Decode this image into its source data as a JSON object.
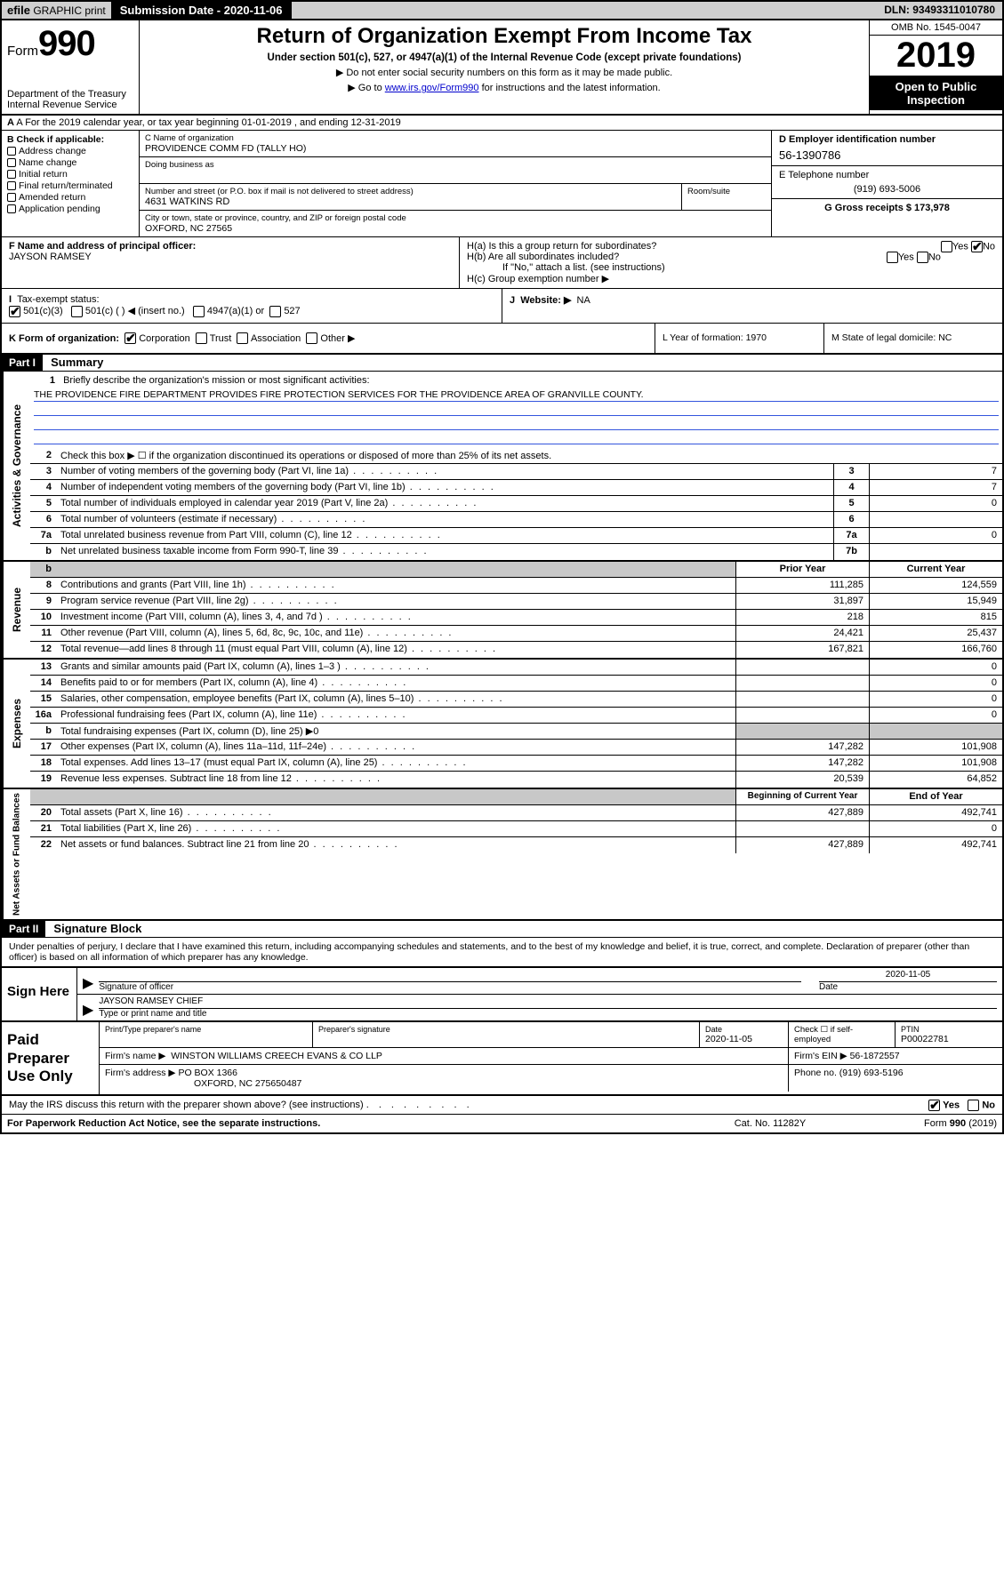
{
  "topbar": {
    "efile_prefix": "efile",
    "efile_rest": " GRAPHIC print",
    "submission_label": "Submission Date - 2020-11-06",
    "dln": "DLN: 93493311010780"
  },
  "header": {
    "form_word": "Form",
    "form_number": "990",
    "dept": "Department of the Treasury",
    "irs": "Internal Revenue Service",
    "title": "Return of Organization Exempt From Income Tax",
    "subtitle": "Under section 501(c), 527, or 4947(a)(1) of the Internal Revenue Code (except private foundations)",
    "note1": "▶ Do not enter social security numbers on this form as it may be made public.",
    "note2_pre": "▶ Go to ",
    "note2_link": "www.irs.gov/Form990",
    "note2_post": " for instructions and the latest information.",
    "omb": "OMB No. 1545-0047",
    "year": "2019",
    "open": "Open to Public Inspection"
  },
  "rowA": "A For the 2019 calendar year, or tax year beginning 01-01-2019     , and ending 12-31-2019",
  "colB": {
    "label": "B Check if applicable:",
    "items": [
      "Address change",
      "Name change",
      "Initial return",
      "Final return/terminated",
      "Amended return",
      "Application pending"
    ]
  },
  "colC": {
    "name_label": "C Name of organization",
    "name": "PROVIDENCE COMM FD (TALLY HO)",
    "dba_label": "Doing business as",
    "addr_label": "Number and street (or P.O. box if mail is not delivered to street address)",
    "room_label": "Room/suite",
    "addr": "4631 WATKINS RD",
    "city_label": "City or town, state or province, country, and ZIP or foreign postal code",
    "city": "OXFORD, NC  27565"
  },
  "colDE": {
    "d_label": "D Employer identification number",
    "ein": "56-1390786",
    "e_label": "E Telephone number",
    "phone": "(919) 693-5006",
    "g_label": "G Gross receipts $ 173,978"
  },
  "fh": {
    "f_label": "F  Name and address of principal officer:",
    "f_name": "JAYSON RAMSEY",
    "ha": "H(a)  Is this a group return for subordinates?",
    "hb": "H(b)  Are all subordinates included?",
    "hb_note": "If \"No,\" attach a list. (see instructions)",
    "hc": "H(c)  Group exemption number ▶",
    "yes": "Yes",
    "no": "No"
  },
  "ij": {
    "i_label": "Tax-exempt status:",
    "i_501c3": "501(c)(3)",
    "i_501c": "501(c) (  ) ◀ (insert no.)",
    "i_4947": "4947(a)(1) or",
    "i_527": "527",
    "j_label": "Website: ▶",
    "j_val": "NA"
  },
  "klm": {
    "k_label": "K Form of organization:",
    "k_corp": "Corporation",
    "k_trust": "Trust",
    "k_assoc": "Association",
    "k_other": "Other ▶",
    "l": "L Year of formation: 1970",
    "m": "M State of legal domicile: NC"
  },
  "partI": {
    "hdr": "Part I",
    "title": "Summary",
    "side_gov": "Activities & Governance",
    "side_rev": "Revenue",
    "side_exp": "Expenses",
    "side_net": "Net Assets or Fund Balances",
    "l1_label": "Briefly describe the organization's mission or most significant activities:",
    "l1_text": "THE PROVIDENCE FIRE DEPARTMENT PROVIDES FIRE PROTECTION SERVICES FOR THE PROVIDENCE AREA OF GRANVILLE COUNTY.",
    "l2": "Check this box ▶ ☐  if the organization discontinued its operations or disposed of more than 25% of its net assets.",
    "rows_gov": [
      {
        "n": "3",
        "t": "Number of voting members of the governing body (Part VI, line 1a)",
        "c": "3",
        "v": "7"
      },
      {
        "n": "4",
        "t": "Number of independent voting members of the governing body (Part VI, line 1b)",
        "c": "4",
        "v": "7"
      },
      {
        "n": "5",
        "t": "Total number of individuals employed in calendar year 2019 (Part V, line 2a)",
        "c": "5",
        "v": "0"
      },
      {
        "n": "6",
        "t": "Total number of volunteers (estimate if necessary)",
        "c": "6",
        "v": ""
      },
      {
        "n": "7a",
        "t": "Total unrelated business revenue from Part VIII, column (C), line 12",
        "c": "7a",
        "v": "0"
      },
      {
        "n": "b",
        "t": "Net unrelated business taxable income from Form 990-T, line 39",
        "c": "7b",
        "v": ""
      }
    ],
    "col_prior": "Prior Year",
    "col_curr": "Current Year",
    "rows_rev": [
      {
        "n": "8",
        "t": "Contributions and grants (Part VIII, line 1h)",
        "p": "111,285",
        "c": "124,559"
      },
      {
        "n": "9",
        "t": "Program service revenue (Part VIII, line 2g)",
        "p": "31,897",
        "c": "15,949"
      },
      {
        "n": "10",
        "t": "Investment income (Part VIII, column (A), lines 3, 4, and 7d )",
        "p": "218",
        "c": "815"
      },
      {
        "n": "11",
        "t": "Other revenue (Part VIII, column (A), lines 5, 6d, 8c, 9c, 10c, and 11e)",
        "p": "24,421",
        "c": "25,437"
      },
      {
        "n": "12",
        "t": "Total revenue—add lines 8 through 11 (must equal Part VIII, column (A), line 12)",
        "p": "167,821",
        "c": "166,760"
      }
    ],
    "rows_exp": [
      {
        "n": "13",
        "t": "Grants and similar amounts paid (Part IX, column (A), lines 1–3 )",
        "p": "",
        "c": "0"
      },
      {
        "n": "14",
        "t": "Benefits paid to or for members (Part IX, column (A), line 4)",
        "p": "",
        "c": "0"
      },
      {
        "n": "15",
        "t": "Salaries, other compensation, employee benefits (Part IX, column (A), lines 5–10)",
        "p": "",
        "c": "0"
      },
      {
        "n": "16a",
        "t": "Professional fundraising fees (Part IX, column (A), line 11e)",
        "p": "",
        "c": "0"
      },
      {
        "n": "b",
        "t": "Total fundraising expenses (Part IX, column (D), line 25) ▶0",
        "p": "SHADE",
        "c": "SHADE"
      },
      {
        "n": "17",
        "t": "Other expenses (Part IX, column (A), lines 11a–11d, 11f–24e)",
        "p": "147,282",
        "c": "101,908"
      },
      {
        "n": "18",
        "t": "Total expenses. Add lines 13–17 (must equal Part IX, column (A), line 25)",
        "p": "147,282",
        "c": "101,908"
      },
      {
        "n": "19",
        "t": "Revenue less expenses. Subtract line 18 from line 12",
        "p": "20,539",
        "c": "64,852"
      }
    ],
    "col_beg": "Beginning of Current Year",
    "col_end": "End of Year",
    "rows_net": [
      {
        "n": "20",
        "t": "Total assets (Part X, line 16)",
        "p": "427,889",
        "c": "492,741"
      },
      {
        "n": "21",
        "t": "Total liabilities (Part X, line 26)",
        "p": "",
        "c": "0"
      },
      {
        "n": "22",
        "t": "Net assets or fund balances. Subtract line 21 from line 20",
        "p": "427,889",
        "c": "492,741"
      }
    ]
  },
  "partII": {
    "hdr": "Part II",
    "title": "Signature Block",
    "penalty": "Under penalties of perjury, I declare that I have examined this return, including accompanying schedules and statements, and to the best of my knowledge and belief, it is true, correct, and complete. Declaration of preparer (other than officer) is based on all information of which preparer has any knowledge."
  },
  "sign": {
    "label": "Sign Here",
    "sig_officer": "Signature of officer",
    "date": "2020-11-05",
    "date_label": "Date",
    "name": "JAYSON RAMSEY  CHIEF",
    "name_label": "Type or print name and title"
  },
  "paid": {
    "label": "Paid Preparer Use Only",
    "h_name": "Print/Type preparer's name",
    "h_sig": "Preparer's signature",
    "h_date": "Date",
    "date": "2020-11-05",
    "h_check": "Check ☐ if self-employed",
    "h_ptin": "PTIN",
    "ptin": "P00022781",
    "firm_label": "Firm's name      ▶",
    "firm": "WINSTON WILLIAMS CREECH EVANS & CO LLP",
    "firm_ein": "Firm's EIN ▶ 56-1872557",
    "addr_label": "Firm's address ▶",
    "addr1": "PO BOX 1366",
    "addr2": "OXFORD, NC  275650487",
    "phone": "Phone no. (919) 693-5196"
  },
  "discuss": {
    "text": "May the IRS discuss this return with the preparer shown above? (see instructions)",
    "yes": "Yes",
    "no": "No"
  },
  "footer": {
    "left": "For Paperwork Reduction Act Notice, see the separate instructions.",
    "mid": "Cat. No. 11282Y",
    "right": "Form 990 (2019)"
  }
}
